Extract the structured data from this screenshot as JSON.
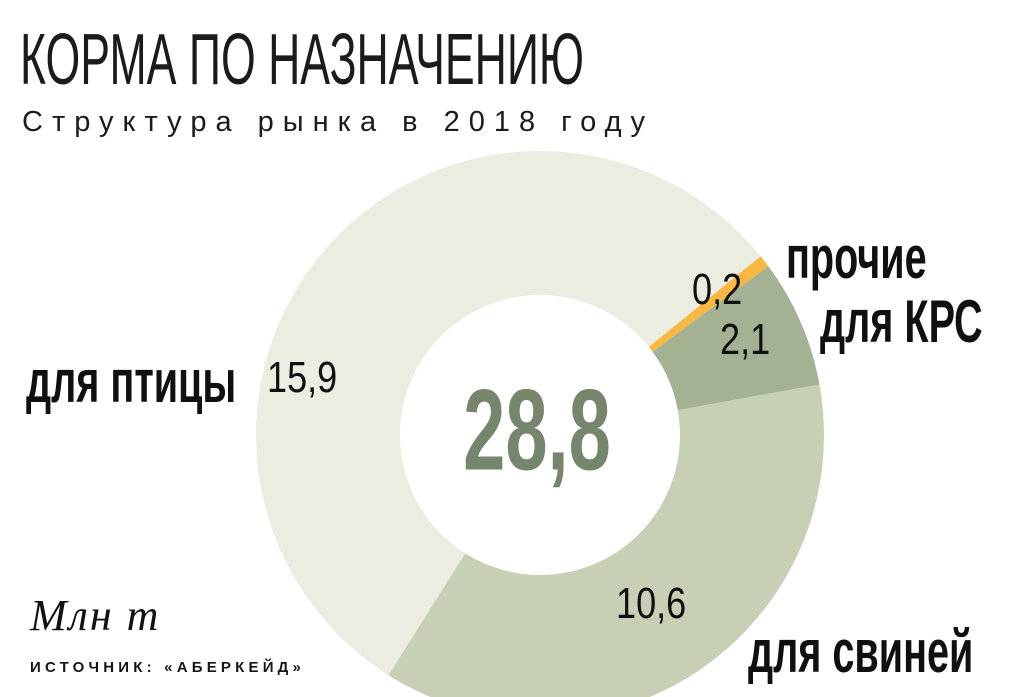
{
  "header": {
    "title": "КОРМА ПО НАЗНАЧЕНИЮ",
    "subtitle": "Структура рынка в 2018 году"
  },
  "footer": {
    "unit_label": "Млн т",
    "source": "ИСТОЧНИК: «АБЕРКЕЙД»"
  },
  "chart_data": {
    "type": "pie",
    "variant": "donut",
    "title": "КОРМА ПО НАЗНАЧЕНИЮ",
    "subtitle": "Структура рынка в 2018 году",
    "unit": "Млн т",
    "total": 28.8,
    "total_display": "28,8",
    "center_value_color": "#76866D",
    "start_angle_deg": 39,
    "direction": "counterclockwise",
    "legend": "labels-on-chart",
    "slices": [
      {
        "name": "для птицы",
        "value": 15.9,
        "display": "15,9",
        "color": "#EAEDE0"
      },
      {
        "name": "для свиней",
        "value": 10.6,
        "display": "10,6",
        "color": "#C7CFB5"
      },
      {
        "name": "для КРС",
        "value": 2.1,
        "display": "2,1",
        "color": "#A4B193"
      },
      {
        "name": "прочие",
        "value": 0.2,
        "display": "0,2",
        "color": "#F8B843"
      }
    ]
  }
}
